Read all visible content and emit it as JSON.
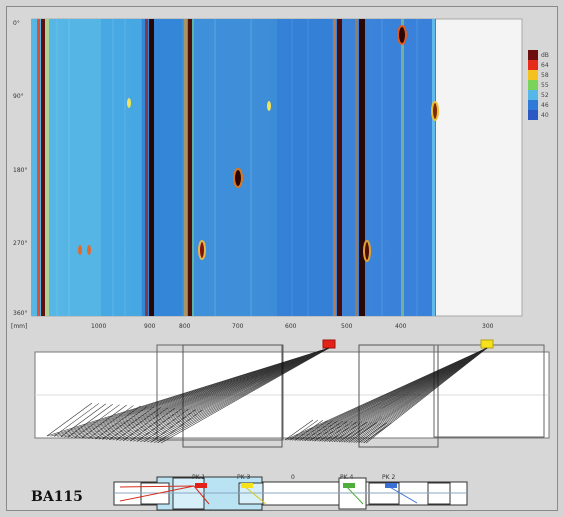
{
  "scan": {
    "angle_labels": [
      "0°",
      "90°",
      "180°",
      "270°",
      "360°"
    ],
    "x_unit": "[mm]",
    "x_ticks": [
      "1000",
      "900",
      "800",
      "700",
      "600",
      "500",
      "400",
      "300"
    ]
  },
  "legend": {
    "values": [
      "dB",
      "64",
      "58",
      "55",
      "52",
      "46",
      "40"
    ],
    "colors": [
      "#6e0f0f",
      "#e52b1a",
      "#f4c21e",
      "#7ad35a",
      "#56b8e8",
      "#2f7ad8",
      "#2b58c2"
    ]
  },
  "markers": {
    "colors": [
      "#e32119",
      "#f5e11c"
    ]
  },
  "overview": {
    "title": "BA115",
    "labels": [
      "PK 1",
      "PK 3",
      "0",
      "PK 4",
      "PK 2"
    ],
    "colors": {
      "pk1": "#e32119",
      "pk3": "#f5e11c",
      "pk4": "#4fae3b",
      "pk2": "#3a6fd6"
    }
  }
}
